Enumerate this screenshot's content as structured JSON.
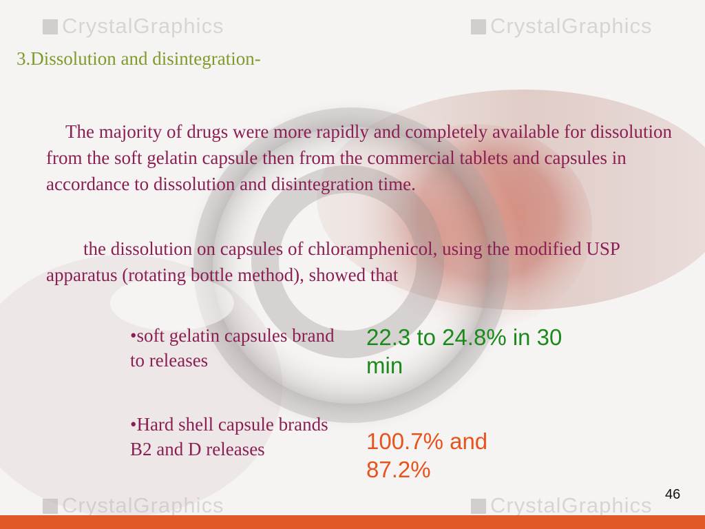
{
  "watermark": {
    "text": "CrystalGraphics"
  },
  "slide": {
    "heading": "3.Dissolution and disintegration-",
    "paragraph_1": "The majority of drugs were more rapidly and completely available for dissolution from the soft gelatin capsule then from the commercial tablets and capsules in accordance to dissolution and disintegration time.",
    "paragraph_2": "the dissolution on capsules of chloramphenicol, using the modified USP apparatus (rotating bottle method), showed that",
    "items": [
      {
        "label": "•soft gelatin capsules brand to releases",
        "value": "22.3 to 24.8% in 30 min"
      },
      {
        "label": "•Hard shell capsule brands B2 and D releases",
        "value": "100.7% and 87.2%"
      }
    ],
    "page_number": "46"
  },
  "colors": {
    "heading": "#7d9a2c",
    "body": "#8a1f54",
    "value_1": "#1a8a1a",
    "value_2": "#e8521c",
    "bottom_bar": "#e05a28"
  }
}
